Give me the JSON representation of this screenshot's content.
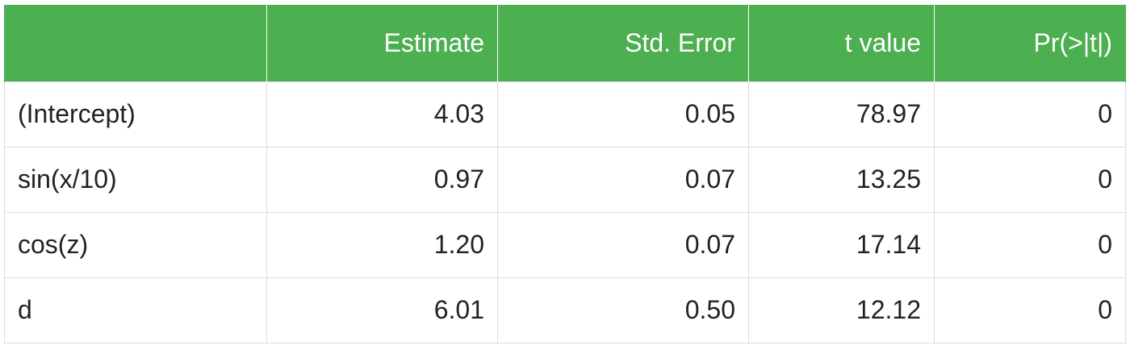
{
  "chart_data": {
    "type": "table",
    "columns": [
      "",
      "Estimate",
      "Std. Error",
      "t value",
      "Pr(>|t|)"
    ],
    "rows": [
      {
        "term": "(Intercept)",
        "estimate": "4.03",
        "std_error": "0.05",
        "t_value": "78.97",
        "p_value": "0"
      },
      {
        "term": "sin(x/10)",
        "estimate": "0.97",
        "std_error": "0.07",
        "t_value": "13.25",
        "p_value": "0"
      },
      {
        "term": "cos(z)",
        "estimate": "1.20",
        "std_error": "0.07",
        "t_value": "17.14",
        "p_value": "0"
      },
      {
        "term": "d",
        "estimate": "6.01",
        "std_error": "0.50",
        "t_value": "12.12",
        "p_value": "0"
      }
    ]
  },
  "colors": {
    "header_bg": "#4caf50",
    "header_text": "#ffffff",
    "cell_text": "#222222",
    "grid": "#dddddd"
  }
}
